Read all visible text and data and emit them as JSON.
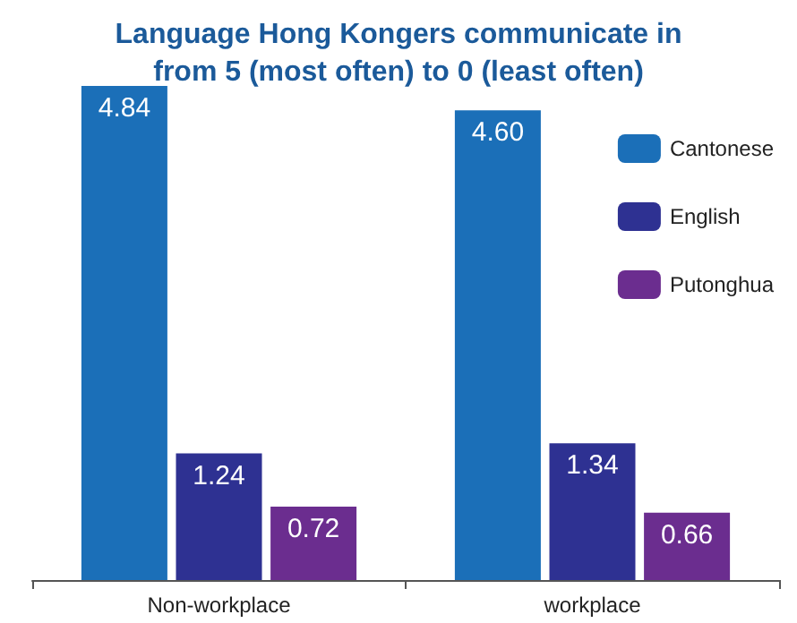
{
  "chart_data": {
    "type": "bar",
    "title": "Language Hong Kongers communicate in\nfrom 5 (most often) to 0 (least often)",
    "categories": [
      "Non-workplace",
      "workplace"
    ],
    "series": [
      {
        "name": "Cantonese",
        "color": "#1b6fb8",
        "values": [
          4.84,
          4.6
        ],
        "value_labels": [
          "4.84",
          "4.60"
        ]
      },
      {
        "name": "English",
        "color": "#2e3192",
        "values": [
          1.24,
          1.34
        ],
        "value_labels": [
          "1.24",
          "1.34"
        ]
      },
      {
        "name": "Putonghua",
        "color": "#6b2d8f",
        "values": [
          0.72,
          0.66
        ],
        "value_labels": [
          "0.72",
          "0.66"
        ]
      }
    ],
    "legend": "top right"
  }
}
